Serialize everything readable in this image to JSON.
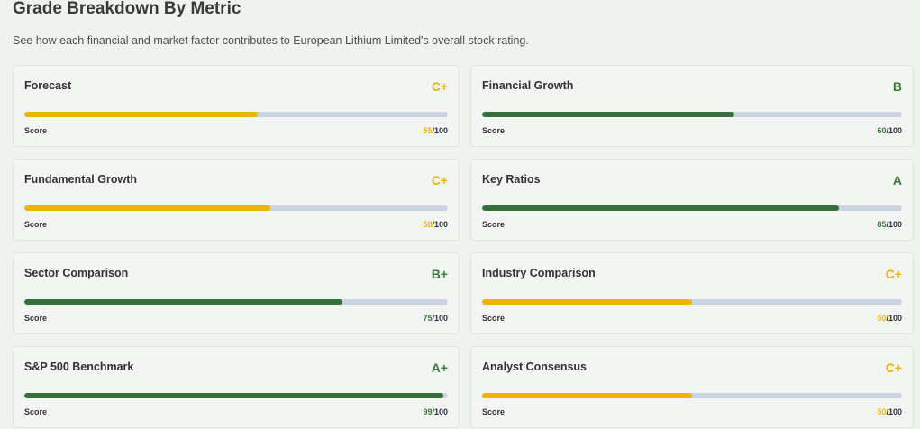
{
  "header": {
    "title": "Grade Breakdown By Metric",
    "subtitle": "See how each financial and market factor contributes to European Lithium Limited's overall stock rating."
  },
  "colors": {
    "yellow": "#f0b400",
    "green": "#33703a",
    "track": "#cbd3df"
  },
  "score_label": "Score",
  "max_suffix": "/100",
  "metrics": [
    {
      "name": "Forecast",
      "grade": "C+",
      "score": 55,
      "color": "yellow"
    },
    {
      "name": "Financial Growth",
      "grade": "B",
      "score": 60,
      "color": "green"
    },
    {
      "name": "Fundamental Growth",
      "grade": "C+",
      "score": 58,
      "color": "yellow"
    },
    {
      "name": "Key Ratios",
      "grade": "A",
      "score": 85,
      "color": "green"
    },
    {
      "name": "Sector Comparison",
      "grade": "B+",
      "score": 75,
      "color": "green"
    },
    {
      "name": "Industry Comparison",
      "grade": "C+",
      "score": 50,
      "color": "yellow"
    },
    {
      "name": "S&P 500 Benchmark",
      "grade": "A+",
      "score": 99,
      "color": "green"
    },
    {
      "name": "Analyst Consensus",
      "grade": "C+",
      "score": 50,
      "color": "yellow"
    }
  ]
}
